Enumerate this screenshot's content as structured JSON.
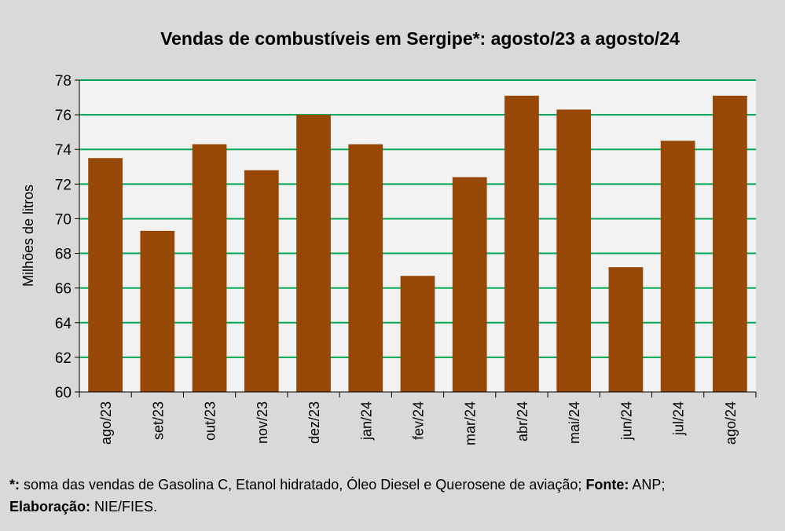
{
  "chart_data": {
    "type": "bar",
    "title": "Vendas de combustíveis em Sergipe*: agosto/23 a agosto/24",
    "ylabel": "Milhões de litros",
    "xlabel": "",
    "categories": [
      "ago/23",
      "set/23",
      "out/23",
      "nov/23",
      "dez/23",
      "jan/24",
      "fev/24",
      "mar/24",
      "abr/24",
      "mai/24",
      "jun/24",
      "jul/24",
      "ago/24"
    ],
    "values": [
      73.5,
      69.3,
      74.3,
      72.8,
      76.0,
      74.3,
      66.7,
      72.4,
      77.1,
      76.3,
      67.2,
      74.5,
      77.1
    ],
    "ylim": [
      60,
      78
    ],
    "yticks": [
      60,
      62,
      64,
      66,
      68,
      70,
      72,
      74,
      76,
      78
    ],
    "grid": true,
    "bar_color": "#974706",
    "grid_color": "#00a651",
    "plot_background": "#f2f2f2"
  },
  "footnote": {
    "marker": "*:",
    "text1": " soma das vendas de Gasolina C, Etanol hidratado, Óleo Diesel e Querosene de aviação; ",
    "source_label": "Fonte:",
    "source_value": " ANP;",
    "credit_label": "Elaboração:",
    "credit_value": " NIE/FIES."
  }
}
